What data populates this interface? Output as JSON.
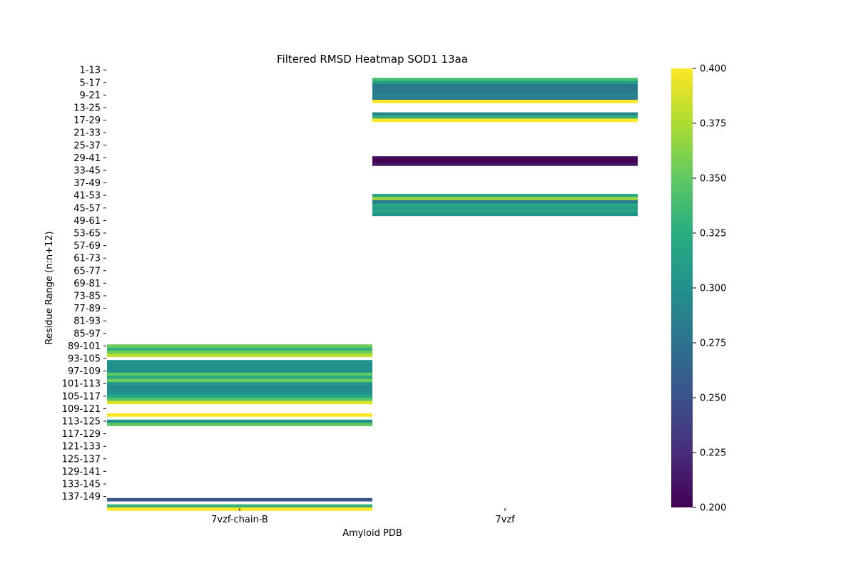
{
  "chart_data": {
    "type": "heatmap",
    "title": "Filtered RMSD Heatmap SOD1 13aa",
    "xlabel": "Amyloid PDB",
    "ylabel": "Residue Range (n:n+12)",
    "columns": [
      "7vzf-chain-B",
      "7vzf"
    ],
    "row_tick_labels": [
      "1-13",
      "5-17",
      "9-21",
      "13-25",
      "17-29",
      "21-33",
      "25-37",
      "29-41",
      "33-45",
      "37-49",
      "41-53",
      "45-57",
      "49-61",
      "53-65",
      "57-69",
      "61-73",
      "65-77",
      "69-81",
      "73-85",
      "77-89",
      "81-93",
      "85-97",
      "89-101",
      "93-105",
      "97-109",
      "101-113",
      "105-117",
      "109-121",
      "113-125",
      "117-129",
      "121-133",
      "125-137",
      "129-141",
      "133-145",
      "137-149"
    ],
    "rows_start": 1,
    "rows_end": 140,
    "cells": {
      "7vzf-chain-B": [
        [
          89,
          0.355
        ],
        [
          90,
          0.33
        ],
        [
          91,
          0.355
        ],
        [
          92,
          0.38
        ],
        [
          94,
          0.3
        ],
        [
          95,
          0.3
        ],
        [
          96,
          0.3
        ],
        [
          97,
          0.3
        ],
        [
          98,
          0.35
        ],
        [
          99,
          0.32
        ],
        [
          100,
          0.355
        ],
        [
          101,
          0.31
        ],
        [
          102,
          0.295
        ],
        [
          103,
          0.295
        ],
        [
          104,
          0.3
        ],
        [
          105,
          0.32
        ],
        [
          106,
          0.345
        ],
        [
          107,
          0.39
        ],
        [
          111,
          0.4
        ],
        [
          113,
          0.3
        ],
        [
          114,
          0.35
        ],
        [
          138,
          0.255
        ],
        [
          140,
          0.33
        ],
        [
          141,
          0.4
        ]
      ],
      "7vzf": [
        [
          4,
          0.34
        ],
        [
          5,
          0.31
        ],
        [
          6,
          0.28
        ],
        [
          7,
          0.28
        ],
        [
          8,
          0.28
        ],
        [
          9,
          0.29
        ],
        [
          10,
          0.28
        ],
        [
          11,
          0.4
        ],
        [
          15,
          0.29
        ],
        [
          16,
          0.33
        ],
        [
          17,
          0.4
        ],
        [
          29,
          0.205
        ],
        [
          30,
          0.2
        ],
        [
          31,
          0.21
        ],
        [
          41,
          0.32
        ],
        [
          42,
          0.37
        ],
        [
          43,
          0.28
        ],
        [
          44,
          0.32
        ],
        [
          45,
          0.31
        ],
        [
          46,
          0.32
        ],
        [
          47,
          0.3
        ]
      ]
    },
    "colorbar": {
      "min": 0.2,
      "max": 0.4,
      "ticks": [
        "0.200",
        "0.225",
        "0.250",
        "0.275",
        "0.300",
        "0.325",
        "0.350",
        "0.375",
        "0.400"
      ],
      "colormap": "viridis"
    }
  }
}
